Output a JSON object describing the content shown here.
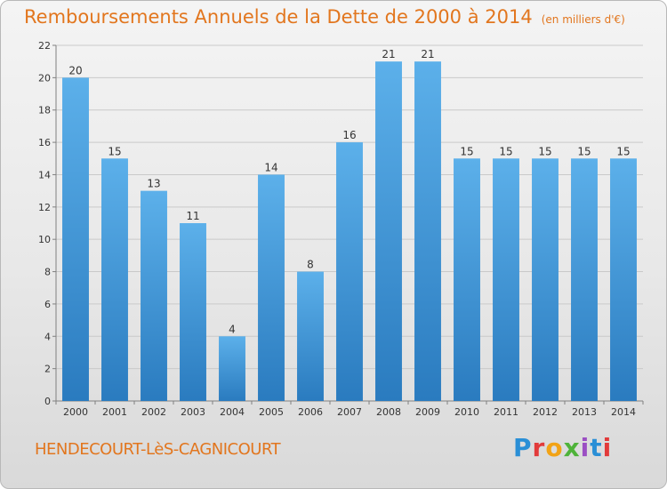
{
  "header": {
    "title": "Remboursements Annuels de la Dette de 2000 à 2014",
    "unit": "(en milliers d'€)"
  },
  "footer": {
    "commune": "HENDECOURT-LèS-CAGNICOURT",
    "brand_letters": [
      "P",
      "r",
      "o",
      "x",
      "i",
      "t",
      "i"
    ],
    "brand_colors": [
      "#2a8fd6",
      "#e23b3b",
      "#f2a316",
      "#4fb33a",
      "#9b4fc3",
      "#2a8fd6",
      "#e23b3b"
    ]
  },
  "chart_data": {
    "type": "bar",
    "title": "Remboursements Annuels de la Dette de 2000 à 2014",
    "xlabel": "",
    "ylabel": "",
    "categories": [
      "2000",
      "2001",
      "2002",
      "2003",
      "2004",
      "2005",
      "2006",
      "2007",
      "2008",
      "2009",
      "2010",
      "2011",
      "2012",
      "2013",
      "2014"
    ],
    "values": [
      20,
      15,
      13,
      11,
      4,
      14,
      8,
      16,
      21,
      21,
      15,
      15,
      15,
      15,
      15
    ],
    "ylim": [
      0,
      22
    ],
    "yticks": [
      0,
      2,
      4,
      6,
      8,
      10,
      12,
      14,
      16,
      18,
      20,
      22
    ],
    "grid": true,
    "legend": "none",
    "colors": {
      "bar_light": "#5cb0ea",
      "bar_dark": "#2a7bbf",
      "grid": "#c9c9c9",
      "axis": "#808080",
      "text": "#333333"
    }
  }
}
